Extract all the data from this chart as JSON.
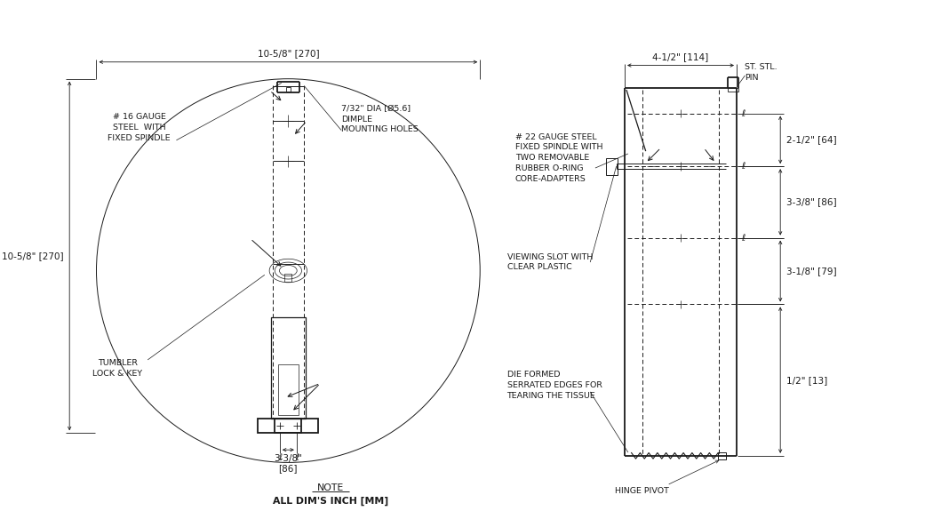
{
  "bg_color": "#ffffff",
  "line_color": "#1a1a1a",
  "fig_width": 10.5,
  "fig_height": 5.93,
  "labels": {
    "gauge_steel": "# 16 GAUGE\nSTEEL  WITH\nFIXED SPINDLE",
    "dimple": "7/32\" DIA [Ø5.6]\nDIMPLE\nMOUNTING HOLES",
    "tumbler": "TUMBLER\nLOCK & KEY",
    "dim_top": "10-5/8\" [270]",
    "dim_left": "10-5/8\" [270]",
    "dim_bottom": "3-3/8\"\n[86]",
    "gauge22": "# 22 GAUGE STEEL\nFIXED SPINDLE WITH\nTWO REMOVABLE\nRUBBER O-RING\nCORE-ADAPTERS",
    "viewing_slot": "VIEWING SLOT WITH\nCLEAR PLASTIC",
    "die_formed": "DIE FORMED\nSERRATED EDGES FOR\nTEARING THE TISSUE",
    "st_stl_pin": "ST. STL.\nPIN",
    "hinge_pivot": "HINGE PIVOT",
    "dim_right_top": "4-1/2\" [114]",
    "dim_r1": "2-1/2\" [64]",
    "dim_r2": "3-3/8\" [86]",
    "dim_r3": "3-1/8\" [79]",
    "dim_r4": "1/2\" [13]",
    "note1": "NOTE",
    "note2": "ALL DIM'S INCH [MM]",
    "cent_symbol": "ℓ"
  }
}
